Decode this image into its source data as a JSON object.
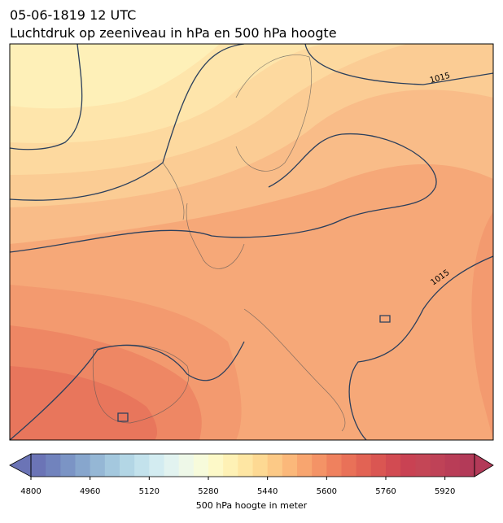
{
  "header": {
    "time": "05-06-1819 12 UTC",
    "title": "Luchtdruk op zeeniveau in hPa en 500 hPa hoogte"
  },
  "map": {
    "isobar_labels": [
      "1015",
      "1015"
    ]
  },
  "colorbar": {
    "label": "500 hPa hoogte in meter",
    "lim": [
      4800,
      6000
    ],
    "ticks": [
      4800,
      4960,
      5120,
      5280,
      5440,
      5600,
      5760,
      5920
    ],
    "colors": [
      "#6b74b6",
      "#7183bd",
      "#7b94c5",
      "#87a6cd",
      "#95b7d5",
      "#a4c8de",
      "#b3d6e5",
      "#c3e2ec",
      "#d3ecf1",
      "#e2f3f0",
      "#eef8e8",
      "#f7fbdb",
      "#fdf9c8",
      "#fef1b5",
      "#fee6a3",
      "#fdd993",
      "#fcc986",
      "#fbb87a",
      "#f8a56f",
      "#f49366",
      "#ef815e",
      "#e97158",
      "#e26354",
      "#da5652",
      "#d24b52",
      "#c94253",
      "#c44656",
      "#bf4257",
      "#b93d57",
      "#b33a58"
    ]
  }
}
